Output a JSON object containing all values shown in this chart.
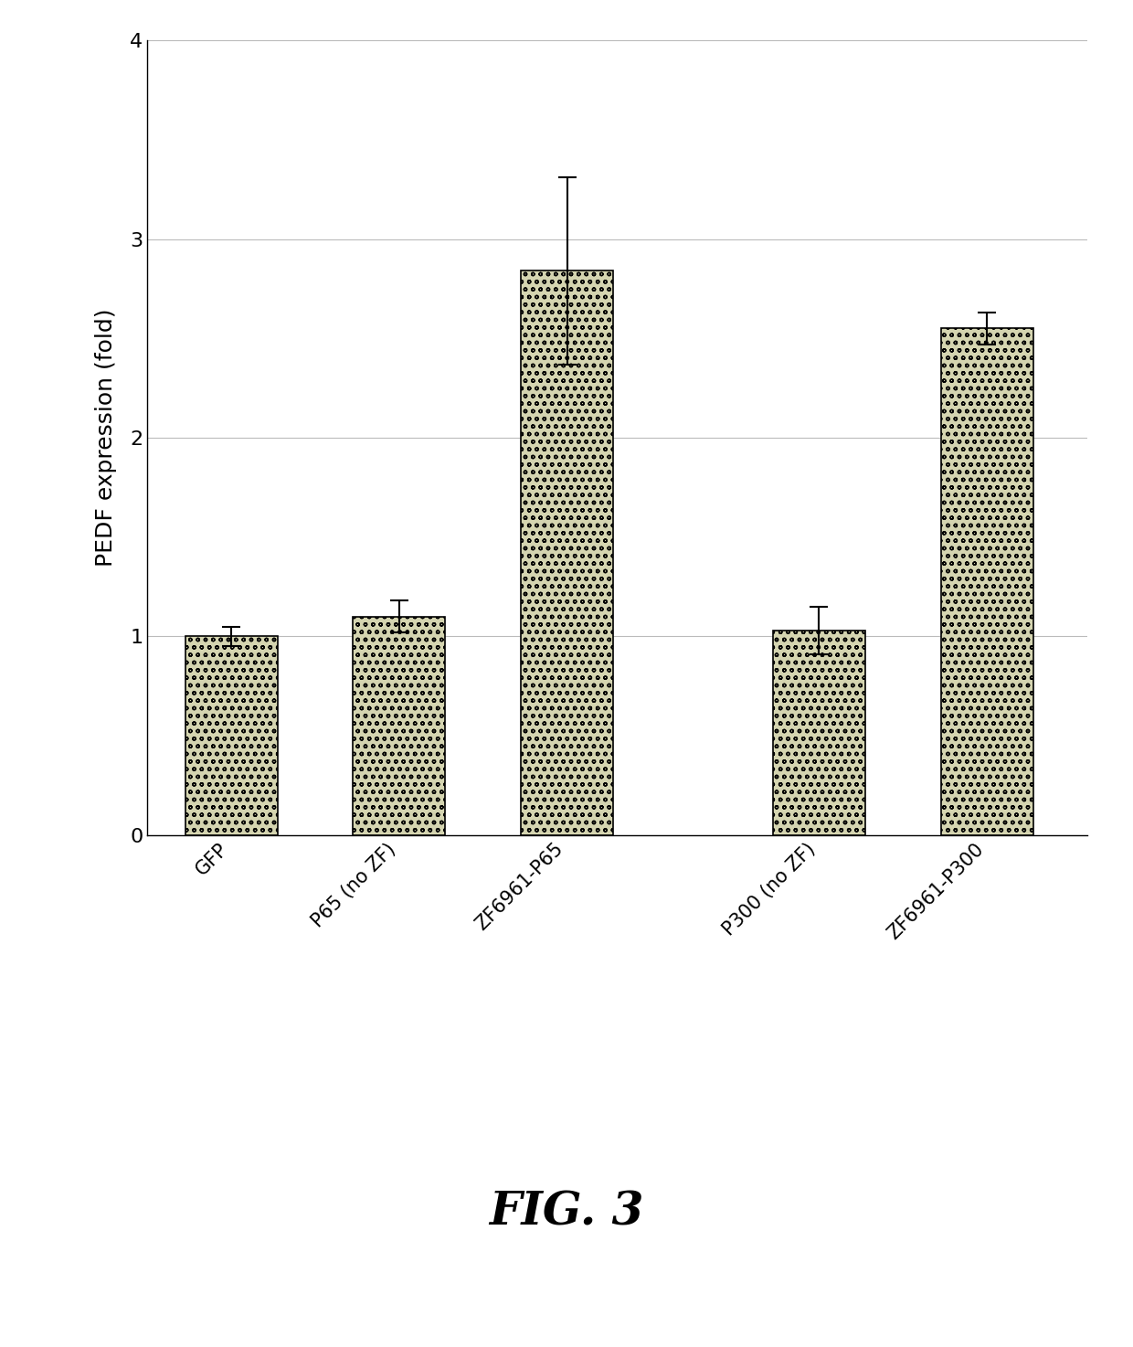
{
  "categories": [
    "GFP",
    "P65 (no ZF)",
    "ZF6961-P65",
    "P300 (no ZF)",
    "ZF6961-P300"
  ],
  "values": [
    1.0,
    1.1,
    2.84,
    1.03,
    2.55
  ],
  "errors": [
    0.05,
    0.08,
    0.47,
    0.12,
    0.08
  ],
  "ylabel": "PEDF expression (fold)",
  "ylim": [
    0,
    4
  ],
  "yticks": [
    0,
    1,
    2,
    3,
    4
  ],
  "bar_color": "#d4d4b0",
  "bar_hatch": "oo",
  "bar_edgecolor": "#000000",
  "bar_width": 0.55,
  "x_positions": [
    0.5,
    1.5,
    2.5,
    4.0,
    5.0
  ],
  "xlim": [
    0.0,
    5.6
  ],
  "figure_caption": "FIG. 3",
  "background_color": "#ffffff",
  "grid_color": "#bbbbbb",
  "axis_label_fontsize": 18,
  "tick_label_fontsize": 15,
  "ytick_label_fontsize": 16,
  "caption_fontsize": 36,
  "caption_fontweight": "bold"
}
